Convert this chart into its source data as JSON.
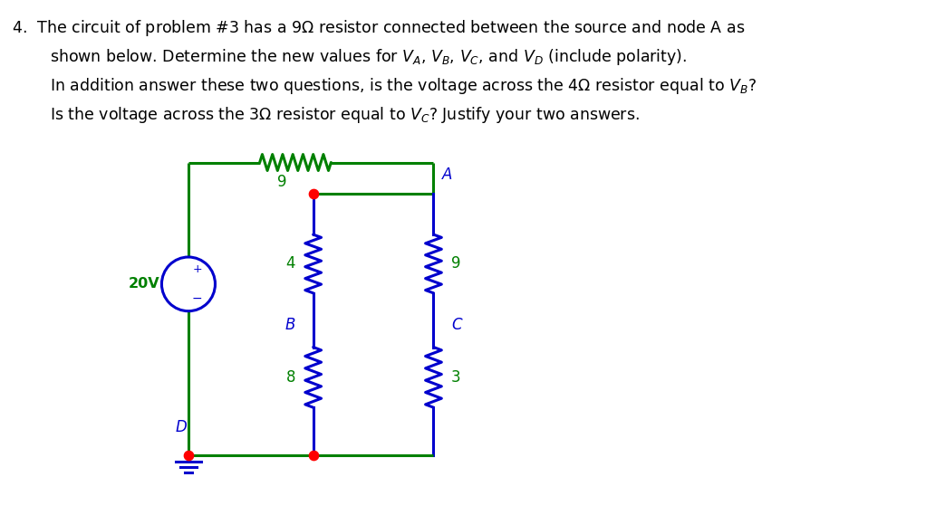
{
  "green_color": "#008000",
  "blue_color": "#0000CD",
  "red_color": "#FF0000",
  "bg_color": "#FFFFFF",
  "lw": 2.2,
  "text_lines": [
    [
      "4.  The circuit of problem #3 has a 9$\\Omega$ resistor connected between the source and node A as",
      0.12,
      5.5
    ],
    [
      "shown below. Determine the new values for $V_A$, $V_B$, $V_C$, and $V_D$ (include polarity).",
      0.55,
      5.18
    ],
    [
      "In addition answer these two questions, is the voltage across the 4$\\Omega$ resistor equal to $V_B$?",
      0.55,
      4.86
    ],
    [
      "Is the voltage across the 3$\\Omega$ resistor equal to $V_C$? Justify your two answers.",
      0.55,
      4.54
    ]
  ]
}
